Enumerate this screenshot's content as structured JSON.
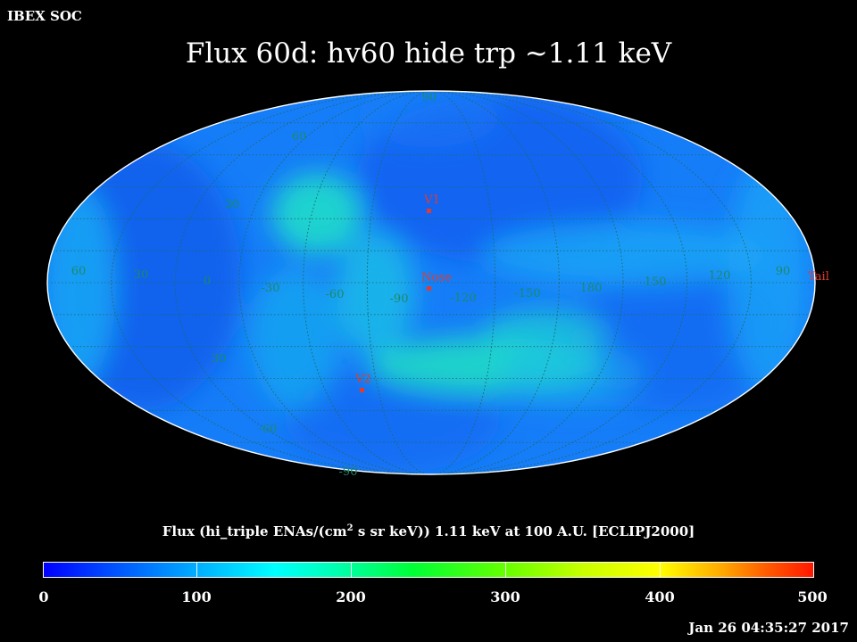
{
  "header": {
    "corner_label": "IBEX SOC",
    "title": "Flux   60d: hv60 hide trp ~1.11 keV"
  },
  "map": {
    "projection": "mollweide",
    "grid_longitude_labels": [
      "60",
      "30",
      "0",
      "-30",
      "-60",
      "-90",
      "-120",
      "-150",
      "180",
      "150",
      "120",
      "90"
    ],
    "grid_latitude_labels_north": [
      "90",
      "60",
      "30"
    ],
    "grid_latitude_labels_south": [
      "30",
      "-60",
      "-90"
    ],
    "markers": [
      {
        "label": "V1",
        "color": "#e23b2e"
      },
      {
        "label": "Nose",
        "color": "#e23b2e"
      },
      {
        "label": "V2",
        "color": "#e23b2e"
      },
      {
        "label": "Tail",
        "color": "#e23b2e"
      }
    ],
    "grid_color": "#1f6b6b",
    "label_color": "#1a8a6a"
  },
  "caption": {
    "before_sup": "Flux (hi_triple ENAs/(cm",
    "sup": "2",
    "after_sup": " s sr keV))  1.11 keV at 100 A.U. [ECLIPJ2000]"
  },
  "colorbar": {
    "min": 0,
    "max": 500,
    "ticks": [
      "0",
      "100",
      "200",
      "300",
      "400",
      "500"
    ]
  },
  "timestamp": "Jan 26 04:35:27 2017"
}
